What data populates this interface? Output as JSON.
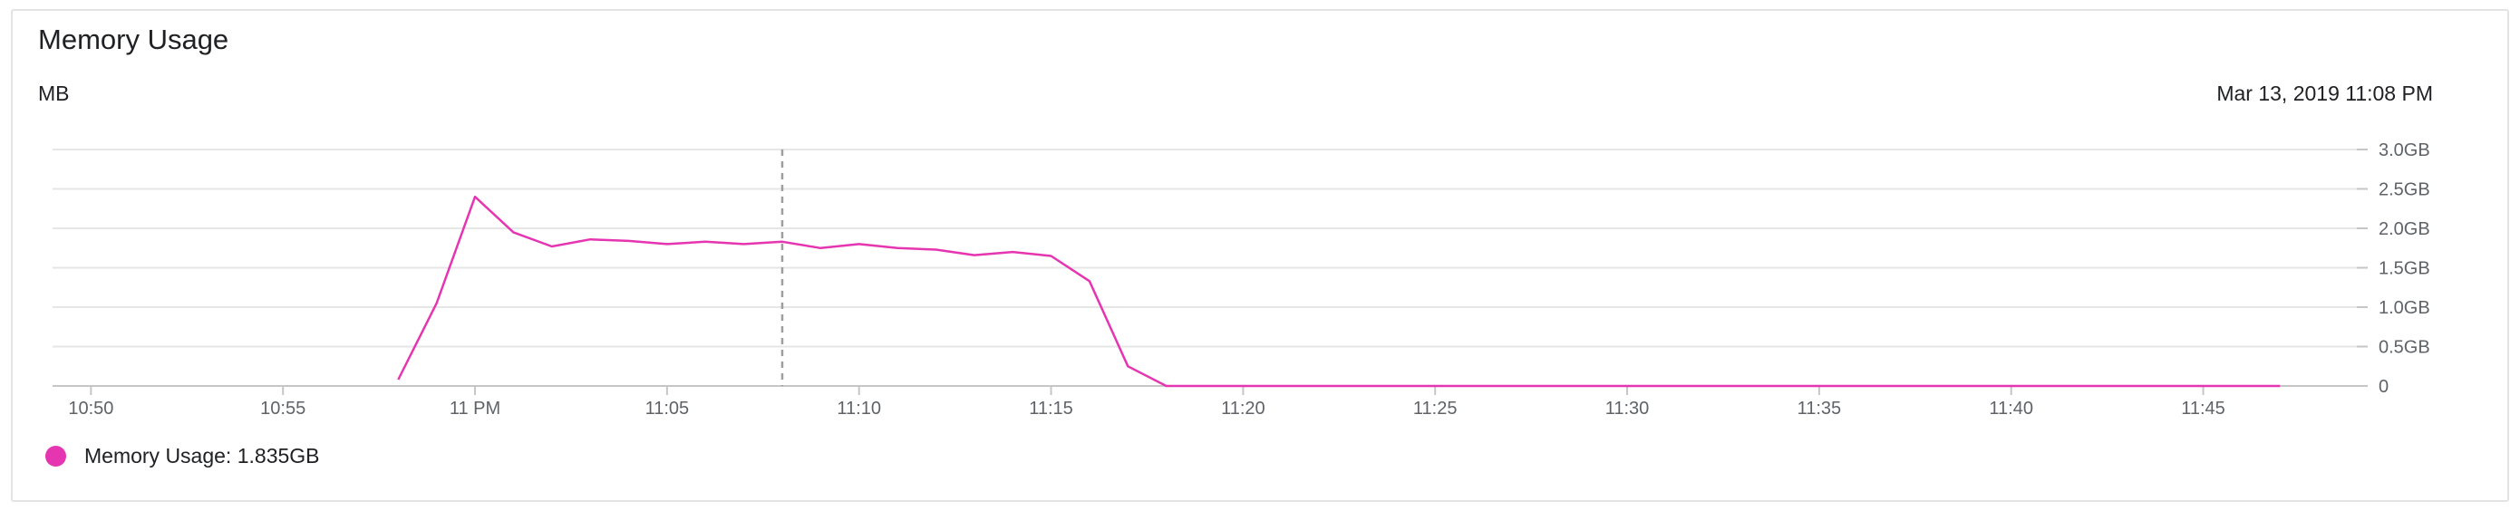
{
  "card": {
    "title": "Memory Usage",
    "unit_label": "MB",
    "timestamp": "Mar 13, 2019 11:08 PM"
  },
  "legend": {
    "label": "Memory Usage",
    "value": "1.835GB",
    "text": "Memory Usage: 1.835GB",
    "color": "#e535b1"
  },
  "chart_data": {
    "type": "line",
    "title": "Memory Usage",
    "ylabel": "MB",
    "x_unit": "minutes",
    "xlim": [
      "10:49",
      "11:49"
    ],
    "ylim": [
      0,
      3.0
    ],
    "y_axis_position": "right",
    "grid": true,
    "legend_position": "bottom-left",
    "x_ticks": [
      {
        "value": "10:50",
        "label": "10:50"
      },
      {
        "value": "10:55",
        "label": "10:55"
      },
      {
        "value": "11:00",
        "label": "11 PM"
      },
      {
        "value": "11:05",
        "label": "11:05"
      },
      {
        "value": "11:10",
        "label": "11:10"
      },
      {
        "value": "11:15",
        "label": "11:15"
      },
      {
        "value": "11:20",
        "label": "11:20"
      },
      {
        "value": "11:25",
        "label": "11:25"
      },
      {
        "value": "11:30",
        "label": "11:30"
      },
      {
        "value": "11:35",
        "label": "11:35"
      },
      {
        "value": "11:40",
        "label": "11:40"
      },
      {
        "value": "11:45",
        "label": "11:45"
      }
    ],
    "y_ticks": [
      {
        "value": 0,
        "label": "0"
      },
      {
        "value": 0.5,
        "label": "0.5GB"
      },
      {
        "value": 1.0,
        "label": "1.0GB"
      },
      {
        "value": 1.5,
        "label": "1.5GB"
      },
      {
        "value": 2.0,
        "label": "2.0GB"
      },
      {
        "value": 2.5,
        "label": "2.5GB"
      },
      {
        "value": 3.0,
        "label": "3.0GB"
      }
    ],
    "cursor_x": "11:08",
    "series": [
      {
        "name": "Memory Usage",
        "color": "#e535b1",
        "x": [
          "10:58",
          "10:59",
          "11:00",
          "11:01",
          "11:02",
          "11:03",
          "11:04",
          "11:05",
          "11:06",
          "11:07",
          "11:08",
          "11:09",
          "11:10",
          "11:11",
          "11:12",
          "11:13",
          "11:14",
          "11:15",
          "11:16",
          "11:17",
          "11:18",
          "11:19",
          "11:20",
          "11:21",
          "11:22",
          "11:23",
          "11:24",
          "11:25",
          "11:26",
          "11:27",
          "11:28",
          "11:29",
          "11:30",
          "11:31",
          "11:32",
          "11:33",
          "11:34",
          "11:35",
          "11:36",
          "11:37",
          "11:38",
          "11:39",
          "11:40",
          "11:41",
          "11:42",
          "11:43",
          "11:44",
          "11:45",
          "11:46",
          "11:47"
        ],
        "values": [
          0.08,
          1.05,
          2.4,
          1.95,
          1.77,
          1.86,
          1.84,
          1.8,
          1.83,
          1.8,
          1.83,
          1.75,
          1.8,
          1.75,
          1.73,
          1.66,
          1.7,
          1.65,
          1.33,
          0.25,
          0.0,
          0.0,
          0.0,
          0.0,
          0.0,
          0.0,
          0.0,
          0.0,
          0.0,
          0.0,
          0.0,
          0.0,
          0.0,
          0.0,
          0.0,
          0.0,
          0.0,
          0.0,
          0.0,
          0.0,
          0.0,
          0.0,
          0.0,
          0.0,
          0.0,
          0.0,
          0.0,
          0.0,
          0.0,
          0.0
        ]
      }
    ]
  }
}
